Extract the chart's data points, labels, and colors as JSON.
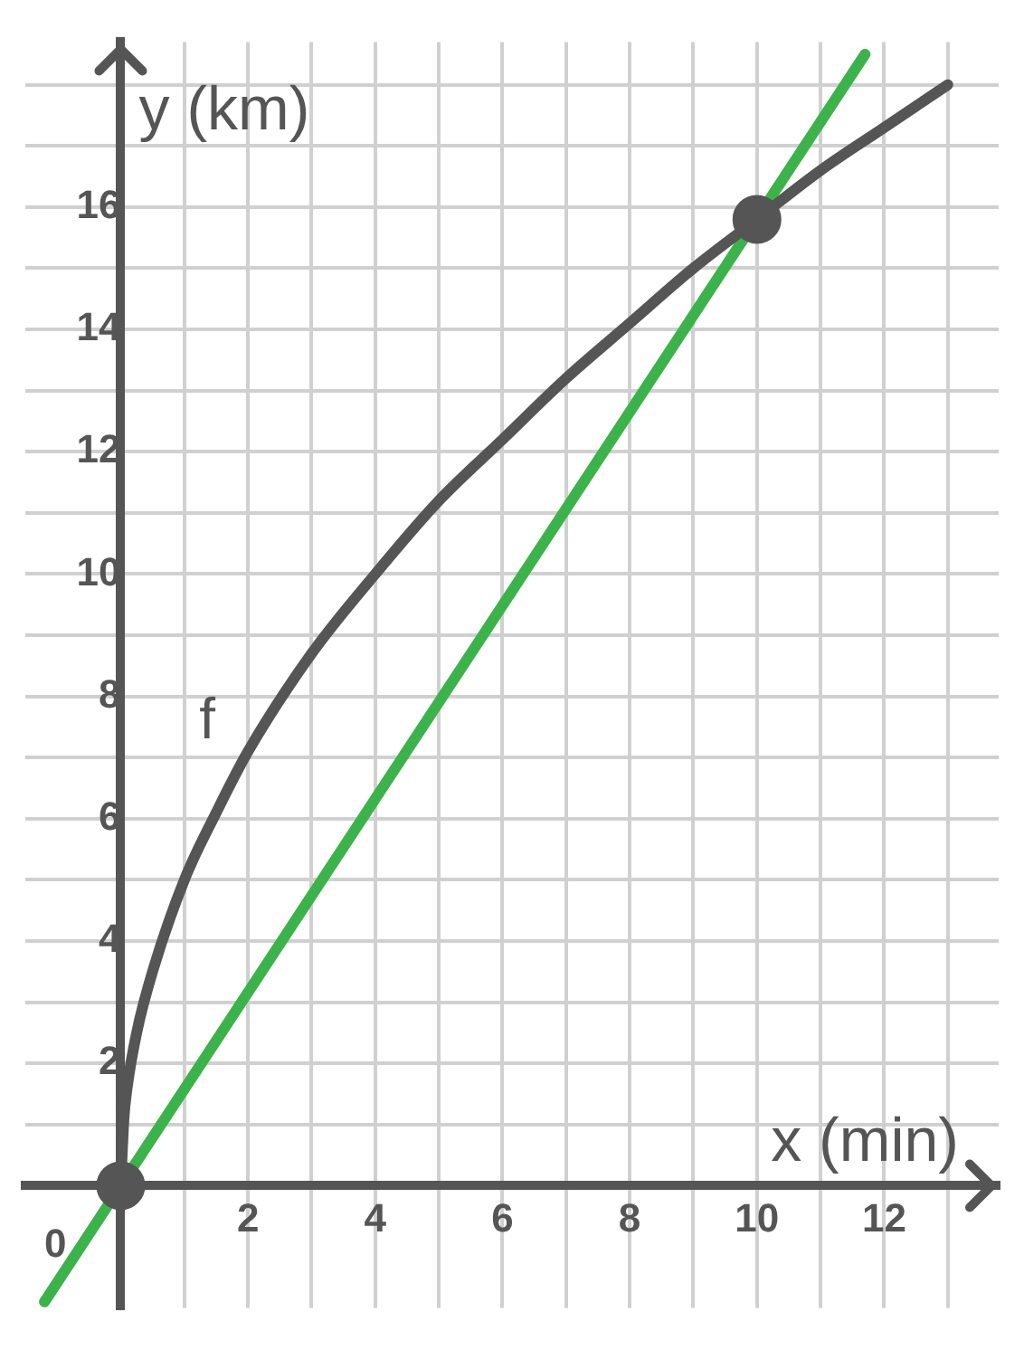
{
  "chart_data": {
    "type": "line",
    "xlabel": "x (min)",
    "ylabel": "y (km)",
    "xlim": [
      -1.5,
      13.8
    ],
    "ylim": [
      -2,
      18.7
    ],
    "annotations": [
      "0"
    ],
    "xticks": [
      {
        "value": 0,
        "label": null
      },
      {
        "value": 1,
        "label": null
      },
      {
        "value": 2,
        "label": "2"
      },
      {
        "value": 3,
        "label": null
      },
      {
        "value": 4,
        "label": "4"
      },
      {
        "value": 5,
        "label": null
      },
      {
        "value": 6,
        "label": "6"
      },
      {
        "value": 7,
        "label": null
      },
      {
        "value": 8,
        "label": "8"
      },
      {
        "value": 9,
        "label": null
      },
      {
        "value": 10,
        "label": "10"
      },
      {
        "value": 11,
        "label": null
      },
      {
        "value": 12,
        "label": "12"
      },
      {
        "value": 13,
        "label": null
      }
    ],
    "yticks": [
      {
        "value": 1,
        "label": null
      },
      {
        "value": 2,
        "label": "2"
      },
      {
        "value": 3,
        "label": null
      },
      {
        "value": 4,
        "label": "4"
      },
      {
        "value": 5,
        "label": null
      },
      {
        "value": 6,
        "label": "6"
      },
      {
        "value": 7,
        "label": null
      },
      {
        "value": 8,
        "label": "8"
      },
      {
        "value": 9,
        "label": null
      },
      {
        "value": 10,
        "label": "10"
      },
      {
        "value": 11,
        "label": null
      },
      {
        "value": 12,
        "label": "12"
      },
      {
        "value": 13,
        "label": null
      },
      {
        "value": 14,
        "label": "14"
      },
      {
        "value": 15,
        "label": null
      },
      {
        "value": 16,
        "label": "16"
      },
      {
        "value": 17,
        "label": null
      },
      {
        "value": 18,
        "label": null
      }
    ],
    "grid": true,
    "legend": false,
    "series": [
      {
        "name": "f",
        "color": "#555555",
        "marker": "none",
        "x": [
          0,
          0.05,
          0.1,
          0.25,
          0.5,
          1,
          1.5,
          2,
          3,
          4,
          5,
          6,
          7,
          8,
          9,
          10,
          11,
          12,
          13
        ],
        "values": [
          0,
          1.1,
          1.6,
          2.5,
          3.5,
          5,
          6.1,
          7.1,
          8.7,
          10,
          11.2,
          12.2,
          13.2,
          14.1,
          15,
          15.8,
          16.6,
          17.3,
          18
        ]
      },
      {
        "color": "#3cb34a",
        "marker": "none",
        "x": [
          -1.2,
          11.7
        ],
        "values": [
          -1.9,
          18.5
        ]
      },
      {
        "type": "scatter",
        "color": "#555555",
        "marker": "circle",
        "x": [
          0,
          10
        ],
        "values": [
          0,
          15.8
        ]
      }
    ]
  }
}
